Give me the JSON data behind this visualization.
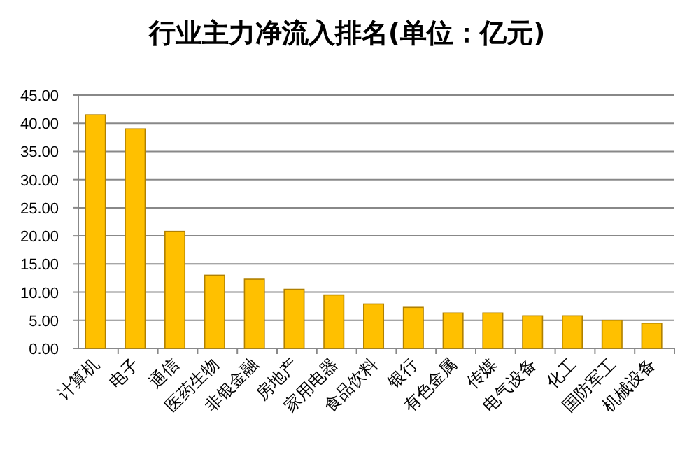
{
  "chart_data": {
    "type": "bar",
    "title": "行业主力净流入排名(单位：亿元)",
    "categories": [
      "计算机",
      "电子",
      "通信",
      "医药生物",
      "非银金融",
      "房地产",
      "家用电器",
      "食品饮料",
      "银行",
      "有色金属",
      "传媒",
      "电气设备",
      "化工",
      "国防军工",
      "机械设备"
    ],
    "values": [
      41.5,
      39,
      20.8,
      13,
      12.3,
      10.5,
      9.5,
      7.9,
      7.3,
      6.3,
      6.3,
      5.8,
      5.8,
      5,
      4.5
    ],
    "color": "#ffc000",
    "ylim": [
      0,
      45
    ],
    "yticks": [
      {
        "value": 0,
        "label": "0.00"
      },
      {
        "value": 5,
        "label": "5.00"
      },
      {
        "value": 10,
        "label": "10.00"
      },
      {
        "value": 15,
        "label": "15.00"
      },
      {
        "value": 20,
        "label": "20.00"
      },
      {
        "value": 25,
        "label": "25.00"
      },
      {
        "value": 30,
        "label": "30.00"
      },
      {
        "value": 35,
        "label": "35.00"
      },
      {
        "value": 40,
        "label": "40.00"
      },
      {
        "value": 45,
        "label": "45.00"
      }
    ],
    "grid": "y"
  }
}
